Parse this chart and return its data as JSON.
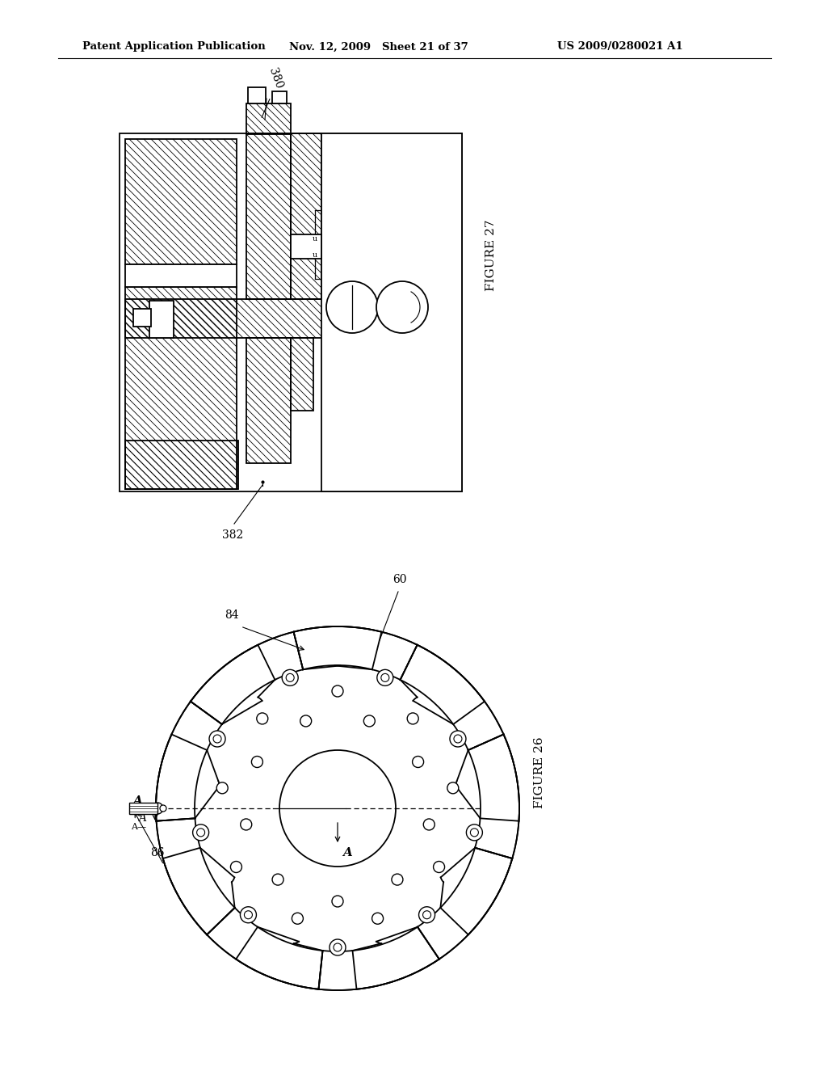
{
  "bg_color": "#ffffff",
  "line_color": "#000000",
  "header_left": "Patent Application Publication",
  "header_mid": "Nov. 12, 2009   Sheet 21 of 37",
  "header_right": "US 2009/0280021 A1",
  "fig27_label": "FIGURE 27",
  "fig26_label": "FIGURE 26",
  "label_380": "380",
  "label_382": "382",
  "label_60": "60",
  "label_84": "84",
  "label_86": "86"
}
